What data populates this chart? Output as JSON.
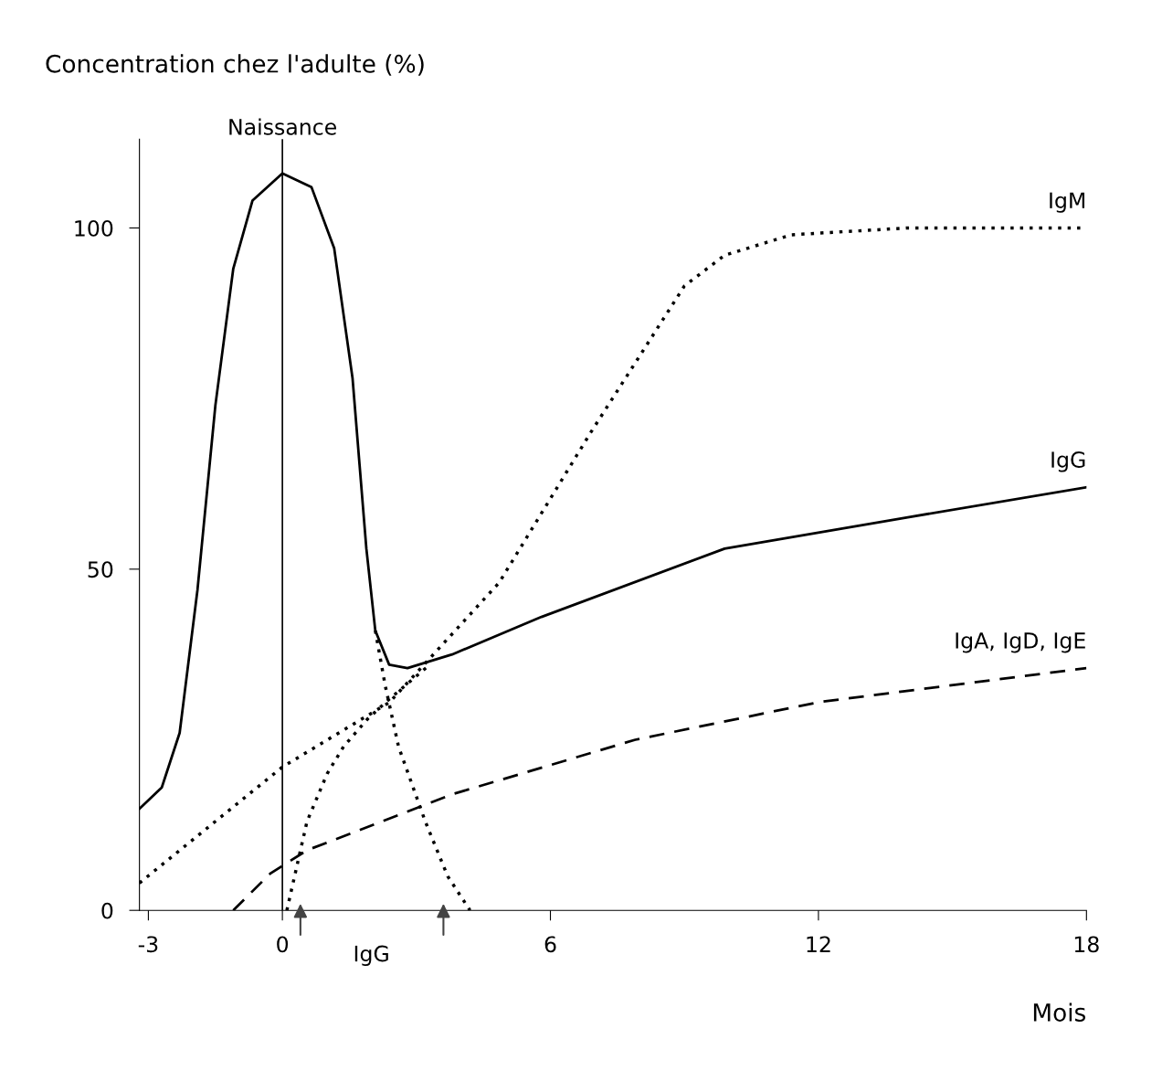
{
  "chart_data": {
    "type": "line",
    "ylabel": "Concentration chez l'adulte (%)",
    "xlabel": "Mois",
    "xlim": [
      -3.2,
      18
    ],
    "ylim": [
      0,
      113
    ],
    "xticks": [
      -3,
      0,
      6,
      12,
      18
    ],
    "yticks": [
      0,
      50,
      100
    ],
    "grid": false,
    "legend": false,
    "marker": "none",
    "series": [
      {
        "name": "IgM",
        "color": "#000000",
        "line_style": "dotted",
        "x": [
          -3.2,
          0,
          2.4,
          4.85,
          6.9,
          9,
          9.9,
          11.4,
          14,
          18
        ],
        "values": [
          4,
          21,
          30.5,
          48,
          70,
          91.5,
          96,
          99,
          100,
          100
        ]
      },
      {
        "name": "IgG",
        "color": "#000000",
        "line_style": "solid",
        "x": [
          -3.2,
          -2.7,
          -2.3,
          -1.9,
          -1.5,
          -1.1,
          -0.67,
          0,
          0.65,
          1.16,
          1.57,
          1.88,
          2.08,
          2.39,
          2.8,
          3.8,
          5.8,
          9.9,
          14,
          18
        ],
        "values": [
          14.9,
          18,
          26,
          47,
          74,
          94,
          104,
          108,
          106,
          97,
          78,
          53,
          41,
          36,
          35.5,
          37.5,
          43,
          53,
          57.6,
          62
        ]
      },
      {
        "color": "#000000",
        "line_style": "dotted",
        "x": [
          2.08,
          2.3,
          2.6,
          3.2,
          3.7,
          4.2
        ],
        "values": [
          41,
          33,
          24,
          13,
          5,
          0
        ]
      },
      {
        "color": "#000000",
        "line_style": "dotted",
        "x": [
          0.1,
          0.55,
          1.0,
          1.37,
          1.9,
          2.4,
          3.3
        ],
        "values": [
          0,
          13,
          20,
          24,
          28,
          31,
          36
        ]
      },
      {
        "name": "IgA, IgD, IgE",
        "color": "#000000",
        "line_style": "dashed",
        "x": [
          -1.1,
          -0.27,
          0.55,
          3.8,
          7.9,
          12,
          18
        ],
        "values": [
          0,
          5.4,
          8.8,
          17,
          25,
          30.5,
          35.5
        ]
      }
    ],
    "ref_lines": [
      {
        "axis": "x",
        "value": 0,
        "label": "Naissance",
        "color": "#000000",
        "line_style": "solid"
      }
    ],
    "annotations": [
      "IgG"
    ]
  }
}
